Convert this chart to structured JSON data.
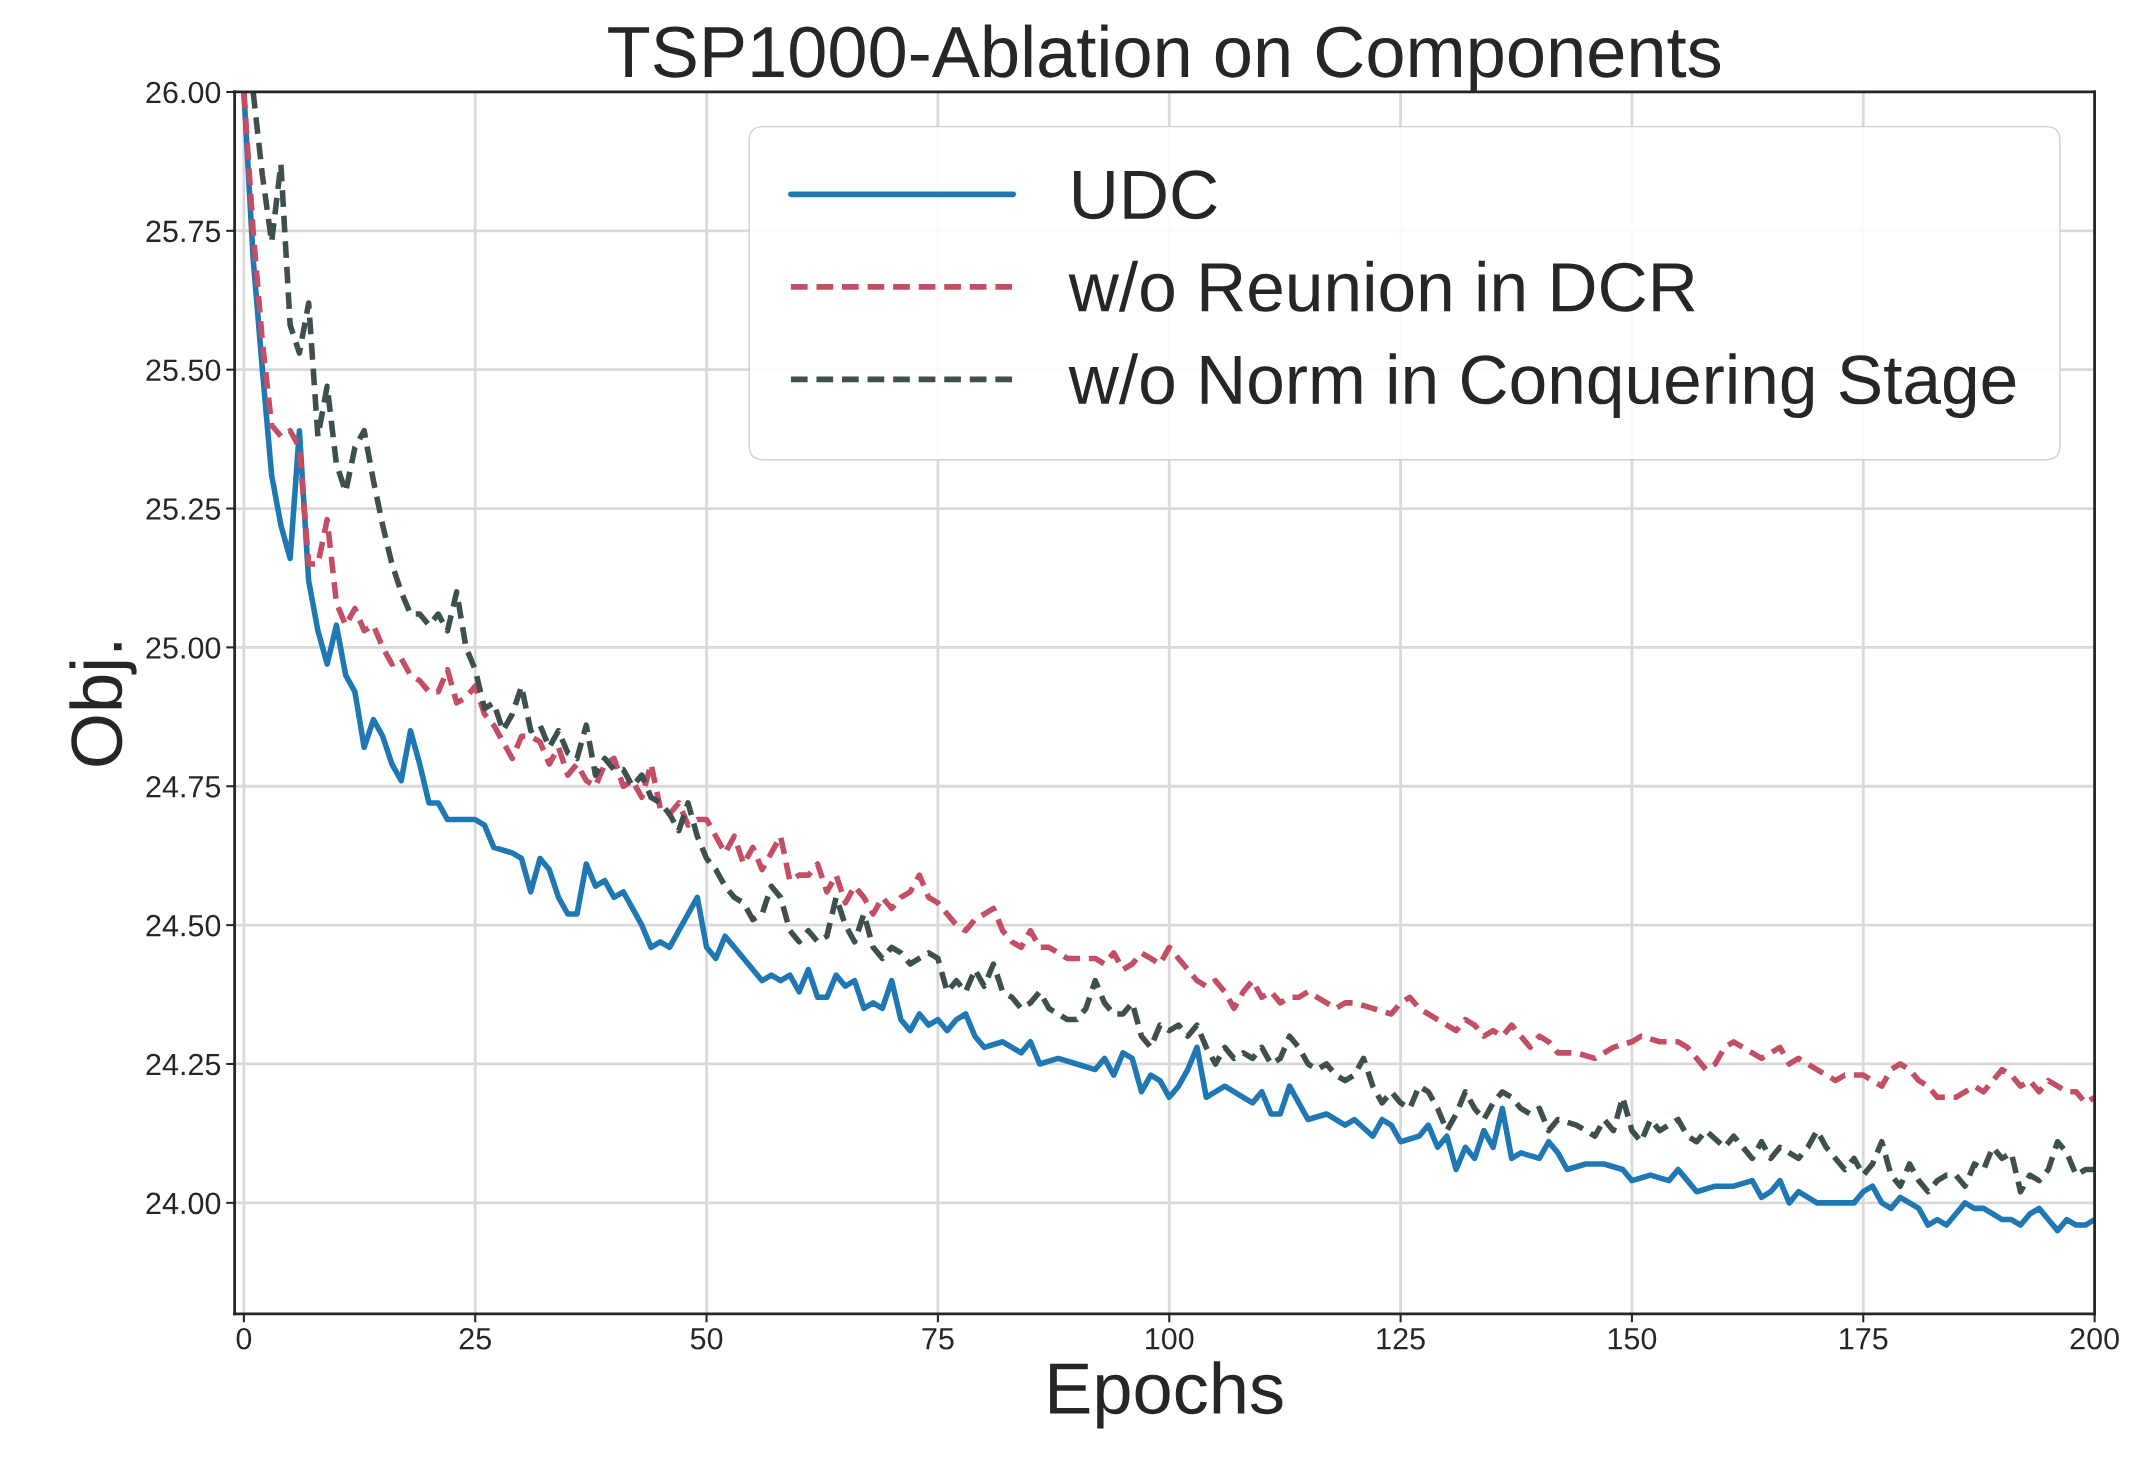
{
  "chart_data": {
    "type": "line",
    "title": "TSP1000-Ablation on Components",
    "xlabel": "Epochs",
    "ylabel": "Obj.",
    "xlim": [
      -1,
      200
    ],
    "xticks": [
      0,
      25,
      50,
      75,
      100,
      125,
      150,
      175,
      200
    ],
    "ylim": [
      23.8,
      26.0
    ],
    "yticks": [
      {
        "value": 24.0,
        "label": "24.00"
      },
      {
        "value": 24.25,
        "label": "24.25"
      },
      {
        "value": 24.5,
        "label": "24.50"
      },
      {
        "value": 24.75,
        "label": "24.75"
      },
      {
        "value": 25.0,
        "label": "25.00"
      },
      {
        "value": 25.25,
        "label": "25.25"
      },
      {
        "value": 25.5,
        "label": "25.50"
      },
      {
        "value": 25.75,
        "label": "25.75"
      },
      {
        "value": 26.0,
        "label": "26.00"
      }
    ],
    "grid": true,
    "legend": "top right",
    "marker": "none",
    "series": [
      {
        "name": "UDC",
        "color": "#1f77b4",
        "line_style": "solid",
        "x": [
          0,
          1,
          2,
          3,
          4,
          5,
          6,
          7,
          8,
          9,
          10,
          11,
          12,
          13,
          14,
          15,
          16,
          17,
          18,
          19,
          20,
          21,
          22,
          24,
          25,
          26,
          27,
          29,
          30,
          31,
          32,
          33,
          34,
          35,
          36,
          37,
          38,
          39,
          40,
          41,
          42,
          43,
          44,
          45,
          46,
          47,
          48,
          49,
          50,
          51,
          52,
          53,
          55,
          56,
          57,
          58,
          59,
          60,
          61,
          62,
          63,
          64,
          65,
          66,
          67,
          68,
          69,
          70,
          71,
          72,
          73,
          74,
          75,
          76,
          77,
          78,
          79,
          80,
          82,
          84,
          85,
          86,
          88,
          90,
          92,
          93,
          94,
          95,
          96,
          97,
          98,
          99,
          100,
          101,
          102,
          103,
          104,
          106,
          108,
          109,
          110,
          111,
          112,
          113,
          114,
          115,
          117,
          119,
          120,
          122,
          123,
          124,
          125,
          127,
          128,
          129,
          130,
          131,
          132,
          133,
          134,
          135,
          136,
          137,
          138,
          140,
          141,
          142,
          143,
          145,
          147,
          149,
          150,
          152,
          154,
          155,
          156,
          157,
          159,
          161,
          163,
          164,
          165,
          166,
          167,
          168,
          170,
          172,
          174,
          175,
          176,
          177,
          178,
          179,
          180,
          181,
          182,
          183,
          184,
          185,
          186,
          187,
          188,
          189,
          190,
          191,
          192,
          193,
          194,
          195,
          196,
          197,
          198,
          199,
          200
        ],
        "values": [
          26.0,
          25.7,
          25.5,
          25.31,
          25.22,
          25.16,
          25.39,
          25.12,
          25.03,
          24.97,
          25.04,
          24.95,
          24.92,
          24.82,
          24.87,
          24.84,
          24.79,
          24.76,
          24.85,
          24.79,
          24.72,
          24.72,
          24.69,
          24.69,
          24.69,
          24.68,
          24.64,
          24.63,
          24.62,
          24.56,
          24.62,
          24.6,
          24.55,
          24.52,
          24.52,
          24.61,
          24.57,
          24.58,
          24.55,
          24.56,
          24.53,
          24.5,
          24.46,
          24.47,
          24.46,
          24.49,
          24.52,
          24.55,
          24.46,
          24.44,
          24.48,
          24.46,
          24.42,
          24.4,
          24.41,
          24.4,
          24.41,
          24.38,
          24.42,
          24.37,
          24.37,
          24.41,
          24.39,
          24.4,
          24.35,
          24.36,
          24.35,
          24.4,
          24.33,
          24.31,
          24.34,
          24.32,
          24.33,
          24.31,
          24.33,
          24.34,
          24.3,
          24.28,
          24.29,
          24.27,
          24.29,
          24.25,
          24.26,
          24.25,
          24.24,
          24.26,
          24.23,
          24.27,
          24.26,
          24.2,
          24.23,
          24.22,
          24.19,
          24.21,
          24.24,
          24.28,
          24.19,
          24.21,
          24.19,
          24.18,
          24.2,
          24.16,
          24.16,
          24.21,
          24.18,
          24.15,
          24.16,
          24.14,
          24.15,
          24.12,
          24.15,
          24.14,
          24.11,
          24.12,
          24.14,
          24.1,
          24.12,
          24.06,
          24.1,
          24.08,
          24.13,
          24.1,
          24.17,
          24.08,
          24.09,
          24.08,
          24.11,
          24.09,
          24.06,
          24.07,
          24.07,
          24.06,
          24.04,
          24.05,
          24.04,
          24.06,
          24.04,
          24.02,
          24.03,
          24.03,
          24.04,
          24.01,
          24.02,
          24.04,
          24.0,
          24.02,
          24.0,
          24.0,
          24.0,
          24.02,
          24.03,
          24.0,
          23.99,
          24.01,
          24.0,
          23.99,
          23.96,
          23.97,
          23.96,
          23.98,
          24.0,
          23.99,
          23.99,
          23.98,
          23.97,
          23.97,
          23.96,
          23.98,
          23.99,
          23.97,
          23.95,
          23.97,
          23.96,
          23.96,
          23.97
        ]
      },
      {
        "name": "w/o Reunion in DCR",
        "color": "#c44e64",
        "line_style": "dashed",
        "x": [
          0,
          1,
          2,
          3,
          4,
          5,
          6,
          7,
          8,
          9,
          10,
          11,
          12,
          13,
          14,
          15,
          16,
          17,
          18,
          19,
          20,
          21,
          22,
          23,
          24,
          25,
          26,
          27,
          28,
          29,
          30,
          31,
          32,
          33,
          34,
          35,
          36,
          37,
          38,
          39,
          40,
          41,
          42,
          43,
          44,
          45,
          46,
          47,
          48,
          49,
          50,
          52,
          53,
          54,
          55,
          56,
          57,
          58,
          59,
          60,
          61,
          62,
          63,
          64,
          65,
          66,
          67,
          68,
          69,
          70,
          71,
          72,
          73,
          74,
          75,
          76,
          77,
          78,
          79,
          80,
          81,
          82,
          83,
          84,
          85,
          86,
          87,
          88,
          89,
          90,
          91,
          92,
          93,
          94,
          95,
          96,
          97,
          98,
          99,
          100,
          101,
          102,
          103,
          104,
          105,
          106,
          107,
          108,
          109,
          110,
          111,
          112,
          113,
          114,
          115,
          116,
          117,
          118,
          119,
          120,
          122,
          124,
          125,
          126,
          127,
          128,
          130,
          131,
          132,
          133,
          134,
          135,
          136,
          137,
          138,
          139,
          140,
          141,
          142,
          144,
          146,
          147,
          148,
          150,
          151,
          153,
          155,
          156,
          157,
          158,
          159,
          160,
          161,
          162,
          163,
          164,
          165,
          166,
          167,
          168,
          170,
          171,
          172,
          173,
          175,
          176,
          177,
          178,
          179,
          180,
          181,
          182,
          183,
          185,
          186,
          187,
          188,
          189,
          190,
          191,
          192,
          193,
          194,
          195,
          196,
          197,
          198,
          199,
          200
        ],
        "values": [
          26.0,
          25.75,
          25.55,
          25.4,
          25.38,
          25.39,
          25.36,
          25.15,
          25.15,
          25.23,
          25.08,
          25.04,
          25.07,
          25.03,
          25.04,
          25.0,
          24.97,
          24.98,
          24.95,
          24.94,
          24.92,
          24.92,
          24.96,
          24.9,
          24.91,
          24.93,
          24.88,
          24.86,
          24.83,
          24.8,
          24.84,
          24.84,
          24.83,
          24.79,
          24.82,
          24.77,
          24.79,
          24.76,
          24.75,
          24.79,
          24.8,
          24.75,
          24.76,
          24.73,
          24.79,
          24.71,
          24.7,
          24.72,
          24.68,
          24.69,
          24.69,
          24.63,
          24.66,
          24.61,
          24.64,
          24.6,
          24.63,
          24.66,
          24.58,
          24.59,
          24.59,
          24.61,
          24.56,
          24.59,
          24.54,
          24.57,
          24.55,
          24.52,
          24.55,
          24.53,
          24.55,
          24.56,
          24.59,
          24.55,
          24.54,
          24.52,
          24.5,
          24.49,
          24.51,
          24.52,
          24.53,
          24.49,
          24.47,
          24.46,
          24.49,
          24.46,
          24.46,
          24.45,
          24.44,
          24.44,
          24.44,
          24.44,
          24.43,
          24.45,
          24.42,
          24.43,
          24.45,
          24.44,
          24.43,
          24.46,
          24.44,
          24.42,
          24.4,
          24.39,
          24.4,
          24.38,
          24.35,
          24.38,
          24.4,
          24.37,
          24.38,
          24.36,
          24.37,
          24.37,
          24.38,
          24.37,
          24.36,
          24.35,
          24.36,
          24.36,
          24.35,
          24.34,
          24.36,
          24.37,
          24.35,
          24.34,
          24.32,
          24.31,
          24.33,
          24.32,
          24.3,
          24.31,
          24.3,
          24.32,
          24.3,
          24.28,
          24.3,
          24.29,
          24.27,
          24.27,
          24.26,
          24.27,
          24.28,
          24.29,
          24.3,
          24.29,
          24.29,
          24.28,
          24.26,
          24.24,
          24.25,
          24.28,
          24.29,
          24.28,
          24.27,
          24.26,
          24.27,
          24.28,
          24.25,
          24.26,
          24.24,
          24.23,
          24.22,
          24.23,
          24.23,
          24.22,
          24.21,
          24.24,
          24.25,
          24.24,
          24.22,
          24.21,
          24.19,
          24.19,
          24.2,
          24.21,
          24.2,
          24.22,
          24.24,
          24.23,
          24.21,
          24.22,
          24.2,
          24.22,
          24.21,
          24.2,
          24.2,
          24.18,
          24.19
        ]
      },
      {
        "name": "w/o Norm in Conquering Stage",
        "color": "#3d4f4f",
        "line_style": "dashed",
        "x": [
          1,
          2,
          3,
          4,
          5,
          6,
          7,
          8,
          9,
          10,
          11,
          12,
          13,
          14,
          15,
          16,
          17,
          18,
          19,
          20,
          21,
          22,
          23,
          24,
          25,
          26,
          27,
          28,
          29,
          30,
          31,
          32,
          33,
          34,
          35,
          36,
          37,
          38,
          39,
          40,
          41,
          42,
          43,
          44,
          45,
          46,
          47,
          48,
          49,
          50,
          51,
          52,
          53,
          54,
          55,
          56,
          57,
          58,
          59,
          60,
          61,
          62,
          63,
          64,
          65,
          66,
          67,
          68,
          69,
          70,
          71,
          72,
          73,
          74,
          75,
          76,
          77,
          78,
          79,
          80,
          81,
          82,
          83,
          84,
          85,
          86,
          87,
          88,
          89,
          90,
          91,
          92,
          93,
          94,
          95,
          96,
          97,
          98,
          99,
          100,
          101,
          102,
          103,
          104,
          105,
          106,
          107,
          108,
          109,
          110,
          111,
          112,
          113,
          114,
          115,
          116,
          117,
          118,
          119,
          120,
          121,
          122,
          123,
          124,
          125,
          126,
          127,
          128,
          129,
          130,
          131,
          132,
          133,
          134,
          135,
          136,
          137,
          138,
          139,
          140,
          141,
          142,
          144,
          146,
          147,
          148,
          149,
          150,
          151,
          152,
          153,
          154,
          155,
          156,
          157,
          158,
          160,
          161,
          162,
          163,
          164,
          165,
          166,
          167,
          168,
          169,
          170,
          171,
          172,
          173,
          174,
          175,
          176,
          177,
          178,
          179,
          180,
          181,
          182,
          183,
          184,
          185,
          186,
          187,
          188,
          189,
          190,
          191,
          192,
          193,
          194,
          195,
          196,
          197,
          198,
          199,
          200
        ],
        "values": [
          26.0,
          25.85,
          25.73,
          25.87,
          25.58,
          25.53,
          25.62,
          25.38,
          25.47,
          25.33,
          25.28,
          25.36,
          25.39,
          25.3,
          25.22,
          25.15,
          25.1,
          25.06,
          25.06,
          25.04,
          25.06,
          25.03,
          25.1,
          25.0,
          24.96,
          24.89,
          24.9,
          24.85,
          24.88,
          24.93,
          24.85,
          24.86,
          24.82,
          24.85,
          24.81,
          24.8,
          24.86,
          24.77,
          24.8,
          24.78,
          24.78,
          24.75,
          24.77,
          24.73,
          24.72,
          24.7,
          24.67,
          24.72,
          24.66,
          24.62,
          24.6,
          24.57,
          24.55,
          24.54,
          24.51,
          24.52,
          24.57,
          24.55,
          24.49,
          24.47,
          24.49,
          24.47,
          24.48,
          24.55,
          24.5,
          24.47,
          24.52,
          24.46,
          24.44,
          24.46,
          24.45,
          24.43,
          24.44,
          24.45,
          24.44,
          24.38,
          24.4,
          24.38,
          24.42,
          24.39,
          24.43,
          24.38,
          24.37,
          24.35,
          24.36,
          24.38,
          24.35,
          24.34,
          24.33,
          24.33,
          24.35,
          24.4,
          24.36,
          24.34,
          24.34,
          24.36,
          24.3,
          24.28,
          24.32,
          24.31,
          24.32,
          24.3,
          24.32,
          24.28,
          24.25,
          24.28,
          24.26,
          24.27,
          24.26,
          24.28,
          24.25,
          24.26,
          24.3,
          24.28,
          24.25,
          24.24,
          24.25,
          24.23,
          24.22,
          24.23,
          24.26,
          24.21,
          24.18,
          24.2,
          24.18,
          24.17,
          24.21,
          24.2,
          24.17,
          24.13,
          24.16,
          24.2,
          24.17,
          24.15,
          24.18,
          24.2,
          24.19,
          24.17,
          24.16,
          24.17,
          24.13,
          24.15,
          24.14,
          24.12,
          24.15,
          24.13,
          24.19,
          24.13,
          24.11,
          24.15,
          24.13,
          24.14,
          24.15,
          24.12,
          24.11,
          24.13,
          24.1,
          24.12,
          24.1,
          24.08,
          24.11,
          24.08,
          24.1,
          24.09,
          24.08,
          24.1,
          24.13,
          24.1,
          24.08,
          24.06,
          24.08,
          24.05,
          24.07,
          24.11,
          24.05,
          24.03,
          24.07,
          24.04,
          24.02,
          24.04,
          24.05,
          24.05,
          24.03,
          24.07,
          24.06,
          24.1,
          24.08,
          24.09,
          24.02,
          24.05,
          24.04,
          24.06,
          24.11,
          24.09,
          24.05,
          24.06,
          24.06
        ]
      }
    ]
  }
}
